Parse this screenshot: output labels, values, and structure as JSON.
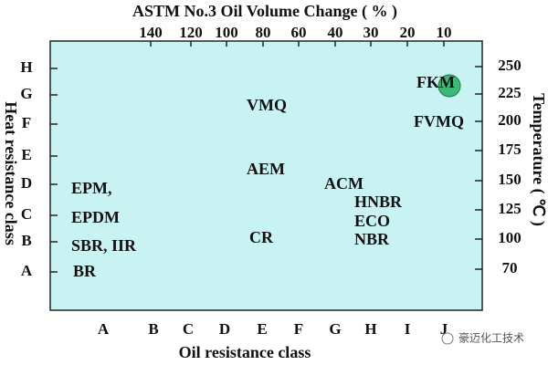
{
  "title": "ASTM No.3 Oil Volume Change ( % )",
  "top_ticks": [
    140,
    120,
    100,
    80,
    60,
    40,
    30,
    20,
    10
  ],
  "bottom_title": "Oil resistance class",
  "bottom_ticks": [
    "A",
    "B",
    "C",
    "D",
    "E",
    "F",
    "G",
    "H",
    "I",
    "J"
  ],
  "left_title": "Heat resistance class",
  "left_ticks": [
    "H",
    "G",
    "F",
    "E",
    "D",
    "C",
    "B",
    "A"
  ],
  "right_title": "Temperature ( ℃ )",
  "right_ticks": [
    250,
    225,
    200,
    175,
    150,
    125,
    100,
    70
  ],
  "materials": [
    "EPM,",
    "EPDM",
    "SBR, IIR",
    "BR",
    "VMQ",
    "AEM",
    "CR",
    "ACM",
    "HNBR",
    "ECO",
    "NBR",
    "FKM",
    "FVMQ"
  ],
  "watermark": "豪迈化工技术"
}
